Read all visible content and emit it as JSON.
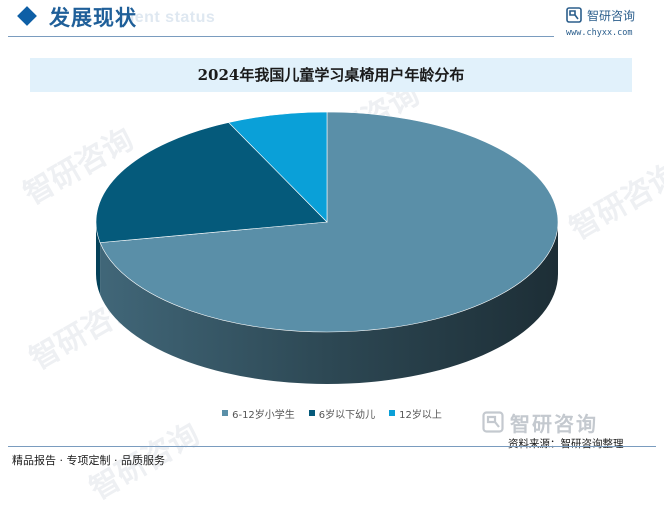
{
  "header": {
    "section_title": "发展现状",
    "section_subtitle": "ment status",
    "brand_name": "智研咨询",
    "brand_url": "www.chyxx.com"
  },
  "watermark": {
    "text": "智研咨询"
  },
  "footer": {
    "services": "精品报告 · 专项定制 · 品质服务",
    "brand_name": "智研咨询",
    "source": "资料来源：智研咨询整理"
  },
  "colors": {
    "accent": "#1f5f99",
    "title_band": "#e1f1fb",
    "slice_1": "#5a8fa8",
    "slice_2": "#055a7b",
    "slice_3": "#0aa0d8"
  },
  "chart_data": {
    "type": "pie",
    "title": "2024年我国儿童学习桌椅用户年龄分布",
    "categories": [
      "6-12岁小学生",
      "6岁以下幼儿",
      "12岁以上"
    ],
    "values": [
      72,
      21,
      7
    ],
    "unit": "%",
    "legend_position": "bottom",
    "data_labels_shown": false,
    "style": "3d"
  }
}
